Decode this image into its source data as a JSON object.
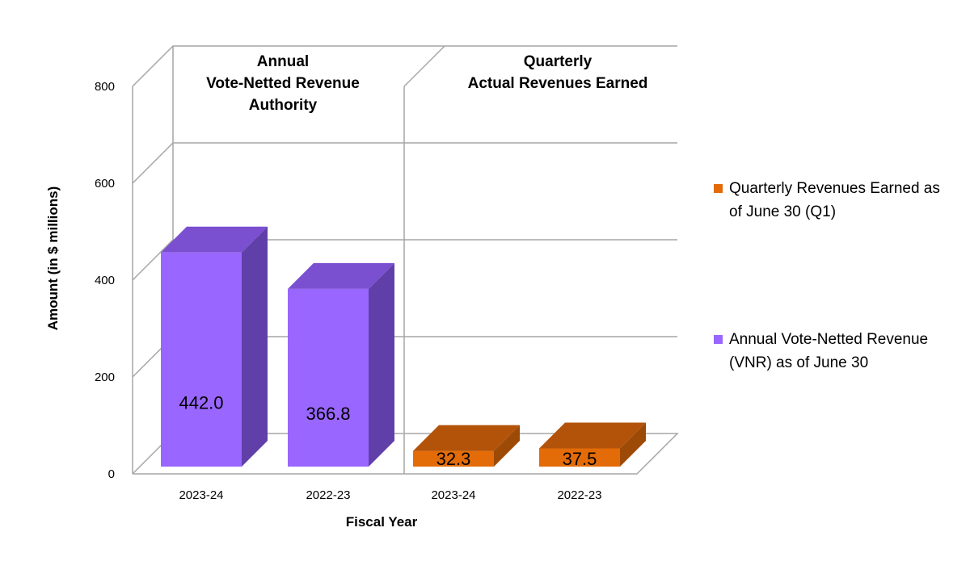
{
  "chart_data": {
    "type": "bar",
    "three_d": true,
    "ylabel": "Amount (in $ millions)",
    "xlabel": "Fiscal Year",
    "ylim": [
      0,
      800
    ],
    "yticks": [
      0,
      200,
      400,
      600,
      800
    ],
    "grid": true,
    "legend_position": "right",
    "sections": [
      {
        "title_lines": [
          "Annual",
          "Vote-Netted Revenue",
          "Authority"
        ]
      },
      {
        "title_lines": [
          "Quarterly",
          "Actual Revenues Earned"
        ]
      }
    ],
    "categories": [
      "2023-24",
      "2022-23",
      "2023-24",
      "2022-23"
    ],
    "series": [
      {
        "name": "Annual Vote-Netted Revenue (VNR) as of June 30",
        "legend_lines": [
          "Annual Vote-Netted Revenue",
          "(VNR) as of June 30"
        ],
        "color": "#9966ff",
        "side_color": "#6040a8",
        "top_color": "#7a4fd0",
        "values": [
          442.0,
          366.8,
          null,
          null
        ],
        "labels": [
          "442.0",
          "366.8",
          "",
          ""
        ]
      },
      {
        "name": "Quarterly Revenues Earned as of June 30 (Q1)",
        "legend_lines": [
          "Quarterly Revenues Earned as",
          "of June 30 (Q1)"
        ],
        "color": "#e36c09",
        "side_color": "#9c4a06",
        "top_color": "#b3530a",
        "values": [
          null,
          null,
          32.3,
          37.5
        ],
        "labels": [
          "",
          "",
          "32.3",
          "37.5"
        ]
      }
    ]
  }
}
